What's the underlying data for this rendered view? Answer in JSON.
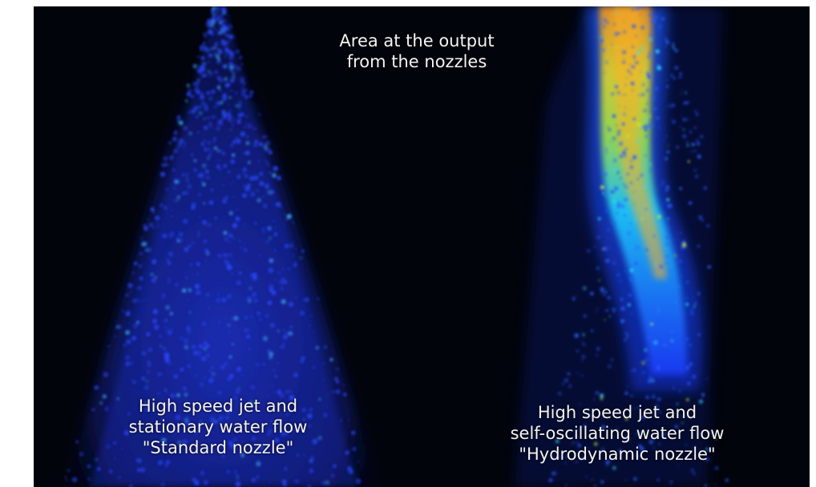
{
  "top_caption": {
    "line1": "Area at the output",
    "line2": "from the nozzles"
  },
  "left_caption": {
    "line1": "High speed jet and",
    "line2": "stationary water flow",
    "line3": "\"Standard nozzle\""
  },
  "right_caption": {
    "line1": "High speed jet and",
    "line2": "self-oscillating water flow",
    "line3": "\"Hydrodynamic nozzle\""
  },
  "colors": {
    "background": "#02040c",
    "spray_blue": "#1a3cff",
    "spray_cyan": "#20d8ff",
    "spray_yellow": "#f0e020",
    "spray_orange": "#ff9a10"
  }
}
